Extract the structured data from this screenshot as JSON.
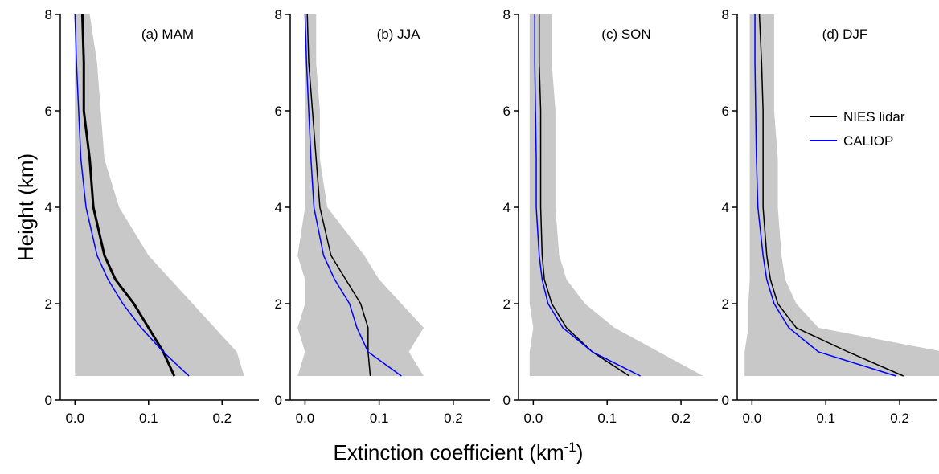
{
  "figure": {
    "ylabel": "Height (km)",
    "xlabel": {
      "text": "Extinction coefficient (km",
      "sup": "-1",
      "close": ")"
    }
  },
  "chart_data": [
    {
      "type": "line",
      "title": "(a) MAM",
      "y": [
        0.5,
        1,
        1.5,
        2,
        2.5,
        3,
        4,
        5,
        6,
        7,
        8
      ],
      "series": [
        {
          "color": "#000000",
          "width": 3,
          "values": [
            0.135,
            0.12,
            0.1,
            0.08,
            0.055,
            0.04,
            0.025,
            0.02,
            0.012,
            0.012,
            0.01
          ]
        },
        {
          "color": "#0000ff",
          "width": 1.5,
          "values": [
            0.155,
            0.12,
            0.09,
            0.065,
            0.045,
            0.03,
            0.015,
            0.008,
            0.005,
            0.002,
            0.0
          ]
        }
      ],
      "band": {
        "color": "#c8c8c8",
        "lower": [
          0.0,
          0.0,
          0.0,
          0.0,
          0.0,
          0.0,
          0.0,
          0.0,
          0.0,
          0.0,
          0.0
        ],
        "upper": [
          0.23,
          0.22,
          0.19,
          0.16,
          0.13,
          0.1,
          0.06,
          0.04,
          0.035,
          0.03,
          0.02
        ]
      },
      "xlim": [
        -0.02,
        0.25
      ],
      "ylim": [
        0,
        8
      ],
      "xticks": [
        {
          "value": 0,
          "label": "0.0"
        },
        {
          "value": 0.1,
          "label": "0.1"
        },
        {
          "value": 0.2,
          "label": "0.2"
        }
      ],
      "yticks": [
        0,
        2,
        4,
        6,
        8
      ]
    },
    {
      "type": "line",
      "title": "(b) JJA",
      "y": [
        0.5,
        1,
        1.5,
        2,
        2.5,
        3,
        4,
        5,
        6,
        7,
        8
      ],
      "series": [
        {
          "color": "#000000",
          "width": 1.5,
          "values": [
            0.088,
            0.085,
            0.085,
            0.075,
            0.055,
            0.035,
            0.02,
            0.015,
            0.01,
            0.005,
            0.003
          ]
        },
        {
          "color": "#0000ff",
          "width": 1.5,
          "values": [
            0.13,
            0.085,
            0.07,
            0.06,
            0.04,
            0.025,
            0.012,
            0.008,
            0.005,
            0.002,
            0.0
          ]
        }
      ],
      "band": {
        "color": "#c8c8c8",
        "lower": [
          -0.01,
          0.0,
          -0.01,
          0.0,
          0.0,
          -0.01,
          0.0,
          0.0,
          0.0,
          0.0,
          0.0
        ],
        "upper": [
          0.16,
          0.14,
          0.16,
          0.13,
          0.1,
          0.08,
          0.03,
          0.02,
          0.02,
          0.015,
          0.015
        ]
      },
      "xlim": [
        -0.02,
        0.25
      ],
      "ylim": [
        0,
        8
      ],
      "xticks": [
        {
          "value": 0,
          "label": "0.0"
        },
        {
          "value": 0.1,
          "label": "0.1"
        },
        {
          "value": 0.2,
          "label": "0.2"
        }
      ],
      "yticks": [
        0,
        2,
        4,
        6,
        8
      ]
    },
    {
      "type": "line",
      "title": "(c) SON",
      "y": [
        0.5,
        1,
        1.5,
        2,
        2.5,
        3,
        4,
        5,
        6,
        7,
        8
      ],
      "series": [
        {
          "color": "#000000",
          "width": 1.5,
          "values": [
            0.13,
            0.08,
            0.045,
            0.025,
            0.015,
            0.012,
            0.01,
            0.01,
            0.01,
            0.008,
            0.008
          ]
        },
        {
          "color": "#0000ff",
          "width": 1.5,
          "values": [
            0.145,
            0.08,
            0.04,
            0.02,
            0.012,
            0.008,
            0.004,
            0.004,
            0.003,
            0.002,
            0.002
          ]
        }
      ],
      "band": {
        "color": "#c8c8c8",
        "lower": [
          -0.005,
          -0.005,
          0.0,
          -0.005,
          -0.005,
          -0.005,
          -0.005,
          -0.005,
          -0.005,
          -0.005,
          -0.005
        ],
        "upper": [
          0.23,
          0.17,
          0.11,
          0.07,
          0.045,
          0.035,
          0.03,
          0.03,
          0.03,
          0.025,
          0.025
        ]
      },
      "xlim": [
        -0.02,
        0.25
      ],
      "ylim": [
        0,
        8
      ],
      "xticks": [
        {
          "value": 0,
          "label": "0.0"
        },
        {
          "value": 0.1,
          "label": "0.1"
        },
        {
          "value": 0.2,
          "label": "0.2"
        }
      ],
      "yticks": [
        0,
        2,
        4,
        6,
        8
      ]
    },
    {
      "type": "line",
      "title": "(d) DJF",
      "y": [
        0.5,
        1,
        1.5,
        2,
        2.5,
        3,
        4,
        5,
        6,
        7,
        8
      ],
      "series": [
        {
          "name": "NIES lidar",
          "color": "#000000",
          "width": 1.5,
          "values": [
            0.205,
            0.13,
            0.06,
            0.035,
            0.025,
            0.02,
            0.015,
            0.015,
            0.015,
            0.013,
            0.01
          ]
        },
        {
          "name": "CALIOP",
          "color": "#0000ff",
          "width": 1.5,
          "values": [
            0.195,
            0.09,
            0.05,
            0.03,
            0.02,
            0.015,
            0.008,
            0.006,
            0.005,
            0.004,
            0.004
          ]
        }
      ],
      "band": {
        "color": "#c8c8c8",
        "lower": [
          -0.01,
          -0.01,
          -0.005,
          -0.005,
          -0.003,
          -0.003,
          -0.003,
          -0.003,
          -0.003,
          -0.003,
          -0.003
        ],
        "upper": [
          0.26,
          0.26,
          0.09,
          0.06,
          0.045,
          0.04,
          0.035,
          0.035,
          0.03,
          0.03,
          0.03
        ]
      },
      "xlim": [
        -0.02,
        0.25
      ],
      "ylim": [
        0,
        8
      ],
      "xticks": [
        {
          "value": 0,
          "label": "0.0"
        },
        {
          "value": 0.1,
          "label": "0.1"
        },
        {
          "value": 0.2,
          "label": "0.2"
        }
      ],
      "yticks": [
        0,
        2,
        4,
        6,
        8
      ],
      "legend": "right"
    }
  ]
}
